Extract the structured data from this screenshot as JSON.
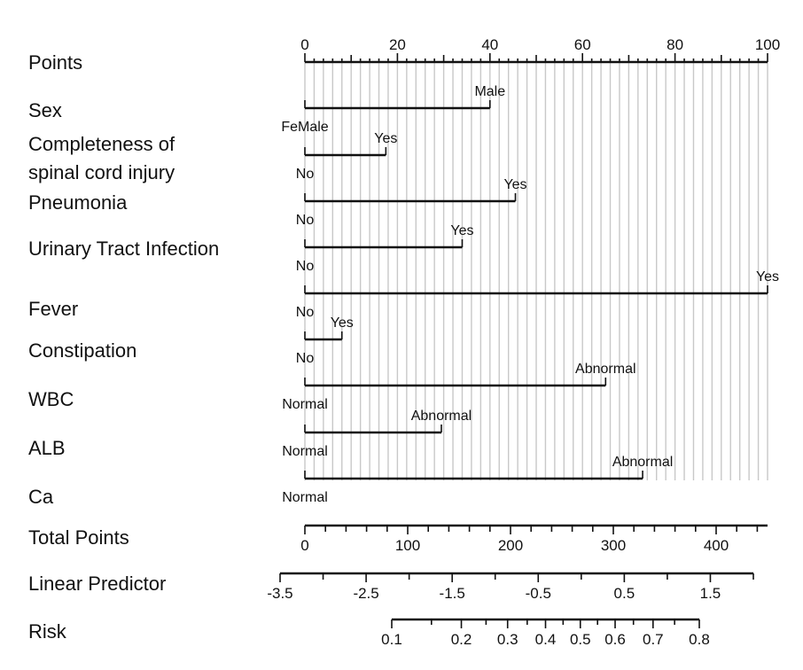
{
  "chart_data": {
    "type": "nomogram",
    "points_axis": {
      "label": "Points",
      "min": 0,
      "max": 100,
      "major_ticks": [
        0,
        20,
        40,
        60,
        80,
        100
      ],
      "minor_step": 2,
      "medium_step": 10
    },
    "variables": [
      {
        "label": "Sex",
        "levels": [
          {
            "name": "FeMale",
            "points": 0
          },
          {
            "name": "Male",
            "points": 40
          }
        ]
      },
      {
        "label": "Completeness of\nspinal cord injury",
        "levels": [
          {
            "name": "No",
            "points": 0
          },
          {
            "name": "Yes",
            "points": 17.5
          }
        ]
      },
      {
        "label": "Pneumonia",
        "levels": [
          {
            "name": "No",
            "points": 0
          },
          {
            "name": "Yes",
            "points": 45.5
          }
        ]
      },
      {
        "label": "Urinary Tract Infection",
        "levels": [
          {
            "name": "No",
            "points": 0
          },
          {
            "name": "Yes",
            "points": 34
          }
        ]
      },
      {
        "label": "Fever",
        "levels": [
          {
            "name": "No",
            "points": 0
          },
          {
            "name": "Yes",
            "points": 100
          }
        ]
      },
      {
        "label": "Constipation",
        "levels": [
          {
            "name": "No",
            "points": 0
          },
          {
            "name": "Yes",
            "points": 8
          }
        ]
      },
      {
        "label": "WBC",
        "levels": [
          {
            "name": "Normal",
            "points": 0
          },
          {
            "name": "Abnormal",
            "points": 65
          }
        ]
      },
      {
        "label": "ALB",
        "levels": [
          {
            "name": "Normal",
            "points": 0
          },
          {
            "name": "Abnormal",
            "points": 29.5
          }
        ]
      },
      {
        "label": "Ca",
        "levels": [
          {
            "name": "Normal",
            "points": 0
          },
          {
            "name": "Abnormal",
            "points": 73
          }
        ]
      }
    ],
    "total_points_axis": {
      "label": "Total Points",
      "min": 0,
      "max": 450,
      "major_ticks": [
        0,
        100,
        200,
        300,
        400
      ],
      "minor_step": 20
    },
    "linear_predictor_axis": {
      "label": "Linear Predictor",
      "min": -3.5,
      "max": 2,
      "major_ticks": [
        -3.5,
        -2.5,
        -1.5,
        -0.5,
        0.5,
        1.5
      ],
      "minor_step": 0.5
    },
    "risk_axis": {
      "label": "Risk",
      "min": 0.1,
      "max": 0.8,
      "major_ticks": [
        0.1,
        0.2,
        0.3,
        0.4,
        0.5,
        0.6,
        0.7,
        0.8
      ],
      "minor_ticks": [
        0.15,
        0.25,
        0.35,
        0.45,
        0.55,
        0.65,
        0.75
      ]
    }
  }
}
